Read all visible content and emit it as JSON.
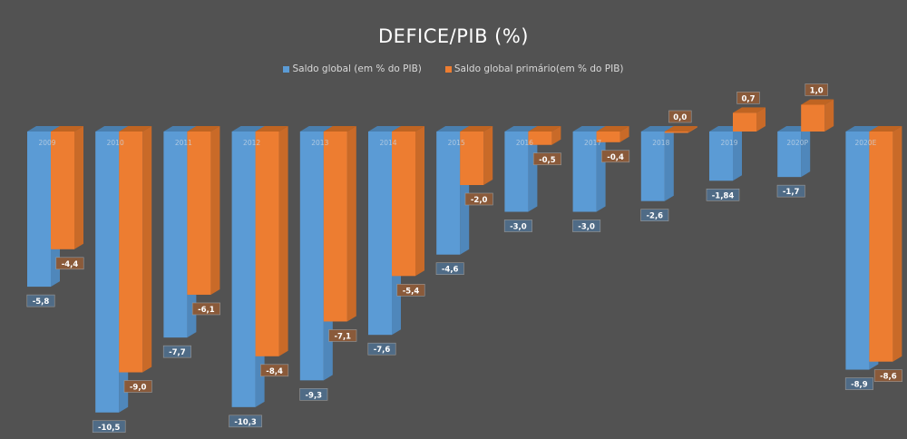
{
  "chart_data": {
    "type": "bar",
    "title": "DEFICE/PIB (%)",
    "xlabel": "",
    "ylabel": "",
    "ylim": [
      -10.5,
      1.0
    ],
    "grid": false,
    "legend_position": "top",
    "categories": [
      "2009",
      "2010",
      "2011",
      "2012",
      "2013",
      "2014",
      "2015",
      "2016",
      "2017",
      "2018",
      "2019",
      "2020P",
      "2020E"
    ],
    "series": [
      {
        "name": "Saldo global (em % do PIB)",
        "color": "#5b9bd5",
        "values": [
          -5.8,
          -10.5,
          -7.7,
          -10.3,
          -9.3,
          -7.6,
          -4.6,
          -3.0,
          -3.0,
          -2.6,
          -1.84,
          -1.7,
          -8.9
        ],
        "labels": [
          "-5,8",
          "-10,5",
          "-7,7",
          "-10,3",
          "-9,3",
          "-7,6",
          "-4,6",
          "-3,0",
          "-3,0",
          "-2,6",
          "-1,84",
          "-1,7",
          "-8,9"
        ]
      },
      {
        "name": "Saldo global primário(em % do PIB)",
        "color": "#ed7d31",
        "values": [
          -4.4,
          -9.0,
          -6.1,
          -8.4,
          -7.1,
          -5.4,
          -2.0,
          -0.5,
          -0.4,
          0.0,
          0.7,
          1.0,
          -8.6
        ],
        "labels": [
          "-4,4",
          "-9,0",
          "-6,1",
          "-8,4",
          "-7,1",
          "-5,4",
          "-2,0",
          "-0,5",
          "-0,4",
          "0,0",
          "0,7",
          "1,0",
          "-8,6"
        ]
      }
    ]
  }
}
